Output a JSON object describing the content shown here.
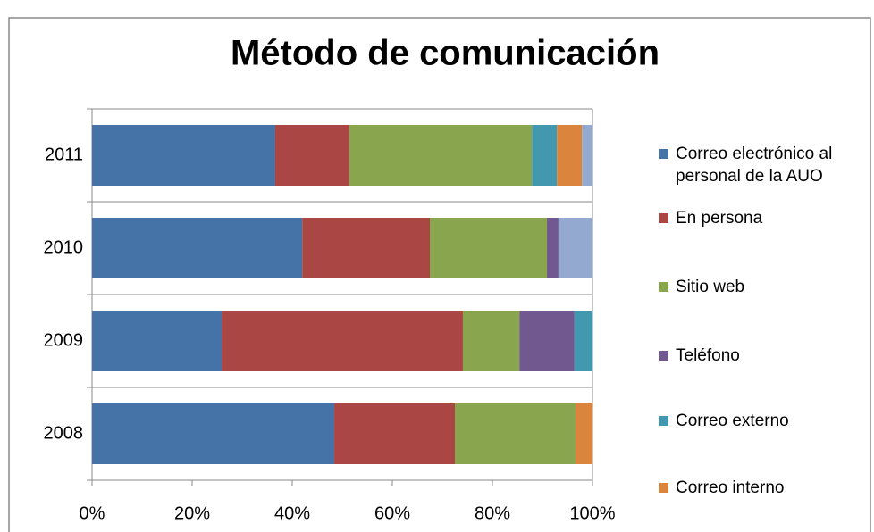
{
  "chart_data": {
    "type": "stacked_bar_horizontal",
    "title": "Método de comunicación",
    "categories": [
      "2011",
      "2010",
      "2009",
      "2008"
    ],
    "series": [
      {
        "name": "Correo electrónico al personal de la AUO",
        "color": "#4572a7",
        "values": [
          36.6,
          42.0,
          25.9,
          48.4
        ]
      },
      {
        "name": "En persona",
        "color": "#aa4643",
        "values": [
          14.8,
          25.5,
          48.2,
          24.1
        ]
      },
      {
        "name": "Sitio web",
        "color": "#89a54e",
        "values": [
          36.5,
          23.4,
          11.3,
          24.1
        ]
      },
      {
        "name": "Teléfono",
        "color": "#71588f",
        "values": [
          0,
          2.3,
          11.0,
          0
        ]
      },
      {
        "name": "Correo externo",
        "color": "#4198af",
        "values": [
          5.0,
          0,
          3.6,
          0
        ]
      },
      {
        "name": "Correo interno",
        "color": "#db843d",
        "values": [
          5.0,
          0,
          0,
          3.4
        ]
      },
      {
        "color": "#93a9cf",
        "values": [
          2.1,
          6.8,
          0,
          0
        ]
      }
    ],
    "xlim": [
      0,
      100
    ],
    "xticks": [
      {
        "value": 0,
        "label": "0%"
      },
      {
        "value": 20,
        "label": "20%"
      },
      {
        "value": 40,
        "label": "40%"
      },
      {
        "value": 60,
        "label": "60%"
      },
      {
        "value": 80,
        "label": "80%"
      },
      {
        "value": 100,
        "label": "100%"
      }
    ],
    "grid": true,
    "legend": "right"
  }
}
